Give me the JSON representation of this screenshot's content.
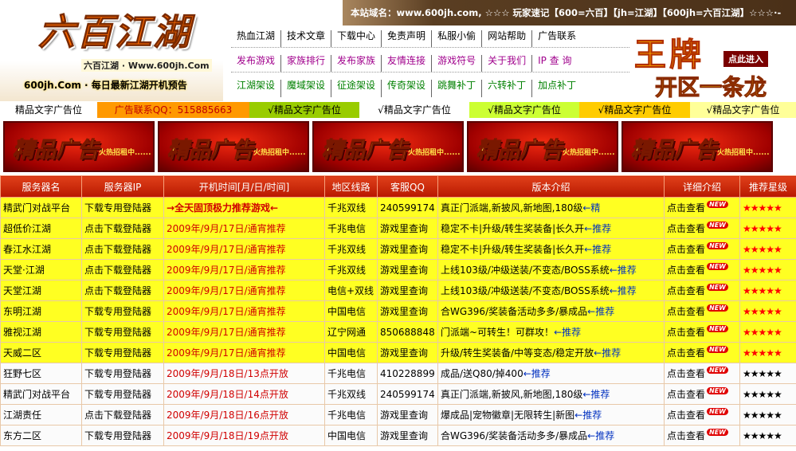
{
  "header": {
    "logo": "六百江湖",
    "logo_sub": "六百江湖 · Www.600jh.Com",
    "logo_slogan": "600jh.Com · 每日最新江湖开机预告",
    "notice": "本站域名：www.600jh.com, ☆☆☆ 玩家速记【600=六百】【jh=江湖】【600jh=六百江湖】☆☆☆·-"
  },
  "nav": [
    [
      "热血江湖",
      "技术文章",
      "下载中心",
      "免责声明",
      "私服小偷",
      "网站帮助",
      "广告联系"
    ],
    [
      "发布游戏",
      "家族排行",
      "发布家族",
      "友情连接",
      "游戏符号",
      "关于我们",
      "IP 查 询"
    ],
    [
      "江湖架设",
      "魔域架设",
      "征途架设",
      "传奇架设",
      "跳舞补丁",
      "六转补丁",
      "加点补丁"
    ]
  ],
  "promo": {
    "title": "王牌",
    "subtitle": "开区一条龙",
    "button": "点此进入"
  },
  "text_ads": [
    "精品文字广告位",
    "广告联系QQ：515885663",
    "√精品文字广告位",
    "√精品文字广告位",
    "√精品文字广告位",
    "√精品文字广告位",
    "√精品文字广告位"
  ],
  "banners": [
    {
      "title": "精品广告",
      "subtitle": "火热招租中......"
    },
    {
      "title": "精品广告",
      "subtitle": "火热招租中......"
    },
    {
      "title": "精品广告",
      "subtitle": "火热招租中......"
    },
    {
      "title": "精品广告",
      "subtitle": "火热招租中......"
    },
    {
      "title": "精品广告",
      "subtitle": "火热招租中......"
    }
  ],
  "table": {
    "columns": [
      "服务器名",
      "服务器IP",
      "开机时间[月/日/时间]",
      "地区线路",
      "客服QQ",
      "版本介绍",
      "详细介绍",
      "推荐星级"
    ],
    "detail": "点击查看",
    "badge": "NEW",
    "rows": [
      {
        "name": "精武门对战平台",
        "ip": "下载专用登陆器",
        "time": "→全天固顶极力推荐游戏←",
        "line": "千兆双线",
        "qq": "240599174",
        "version": "真正门派端,新披风,新地图,180级",
        "tag": "←精",
        "stars": "★★★★★"
      },
      {
        "name": "超低价江湖",
        "ip": "点击下载登陆器",
        "time": "2009年/9月/17日/通宵推荐",
        "line": "千兆电信",
        "qq": "游戏里查询",
        "version": "稳定不卡|升级/转生奖装备|长久开",
        "tag": "←推荐",
        "stars": "★★★★★"
      },
      {
        "name": "春江水江湖",
        "ip": "点击下载登陆器",
        "time": "2009年/9月/17日/通宵推荐",
        "line": "千兆双线",
        "qq": "游戏里查询",
        "version": "稳定不卡|升级/转生奖装备|长久开",
        "tag": "←推荐",
        "stars": "★★★★★"
      },
      {
        "name": "天堂·江湖",
        "ip": "点击下载登陆器",
        "time": "2009年/9月/17日/通宵推荐",
        "line": "千兆双线",
        "qq": "游戏里查询",
        "version": "上线103级/冲级送装/不变态/BOSS系统",
        "tag": "←推荐",
        "stars": "★★★★★"
      },
      {
        "name": "天堂江湖",
        "ip": "点击下载登陆器",
        "time": "2009年/9月/17日/通宵推荐",
        "line": "电信+双线",
        "qq": "游戏里查询",
        "version": "上线103级/冲级送装/不变态/BOSS系统",
        "tag": "←推荐",
        "stars": "★★★★★"
      },
      {
        "name": "东明江湖",
        "ip": "下载专用登陆器",
        "time": "2009年/9月/17日/通宵推荐",
        "line": "中国电信",
        "qq": "游戏里查询",
        "version": "合WG396/奖装备活动多多/暴成品",
        "tag": "←推荐",
        "stars": "★★★★★"
      },
      {
        "name": "雅视江湖",
        "ip": "下载专用登陆器",
        "time": "2009年/9月/17日/通宵推荐",
        "line": "辽宁网通",
        "qq": "850688848",
        "version": "门派端~可转生！可群攻！",
        "tag": "←推荐",
        "stars": "★★★★★"
      },
      {
        "name": "天威二区",
        "ip": "下载专用登陆器",
        "time": "2009年/9月/17日/通宵推荐",
        "line": "中国电信",
        "qq": "游戏里查询",
        "version": "升级/转生奖装备/中等变态/稳定开放",
        "tag": "←推荐",
        "stars": "★★★★★"
      },
      {
        "name": "狂野七区",
        "ip": "下载专用登陆器",
        "time": "2009年/9月/18日/13点开放",
        "line": "千兆电信",
        "qq": "410228899",
        "version": "成品/送Q80/掉400",
        "tag": "←推荐",
        "stars": "★★★★★"
      },
      {
        "name": "精武门对战平台",
        "ip": "下载专用登陆器",
        "time": "2009年/9月/18日/14点开放",
        "line": "千兆双线",
        "qq": "240599174",
        "version": "真正门派端,新披风,新地图,180级",
        "tag": "←推荐",
        "stars": "★★★★★"
      },
      {
        "name": "江湖责任",
        "ip": "点击下载登陆器",
        "time": "2009年/9月/18日/16点开放",
        "line": "千兆电信",
        "qq": "游戏里查询",
        "version": "爆成品|宠物徽章|无限转生|新图",
        "tag": "←推荐",
        "stars": "★★★★★"
      },
      {
        "name": "东方二区",
        "ip": "下载专用登陆器",
        "time": "2009年/9月/18日/19点开放",
        "line": "中国电信",
        "qq": "游戏里查询",
        "version": "合WG396/奖装备活动多多/暴成品",
        "tag": "←推荐",
        "stars": "★★★★★"
      }
    ]
  }
}
